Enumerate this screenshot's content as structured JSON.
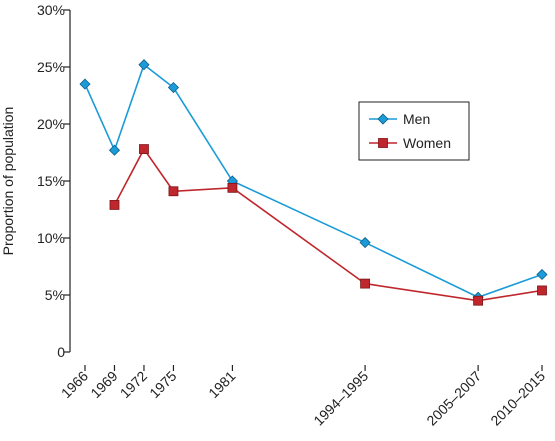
{
  "chart_data": {
    "type": "line",
    "ylabel": "Proportion of population",
    "xlabel": "",
    "title": "",
    "categories": [
      "1966",
      "1969",
      "1972",
      "1975",
      "1981",
      "1994–1995",
      "2005–2007",
      "2010–2015"
    ],
    "x_positions": [
      1966,
      1969,
      1972,
      1975,
      1981,
      1994.5,
      2006,
      2012.5
    ],
    "y_ticks": [
      "0",
      "5%",
      "10%",
      "15%",
      "20%",
      "25%",
      "30%"
    ],
    "y_tick_values": [
      0,
      5,
      10,
      15,
      20,
      25,
      30
    ],
    "ylim": [
      0,
      30
    ],
    "legend_position": "top-right",
    "grid": false,
    "series": [
      {
        "name": "Men",
        "color": "#1b9bd7",
        "marker": "diamond",
        "values": [
          23.5,
          17.7,
          25.2,
          23.2,
          15.0,
          9.6,
          4.8,
          6.8
        ]
      },
      {
        "name": "Women",
        "color": "#c0272d",
        "marker": "square",
        "values": [
          null,
          12.9,
          17.8,
          14.1,
          14.4,
          6.0,
          4.5,
          5.4
        ]
      }
    ]
  }
}
